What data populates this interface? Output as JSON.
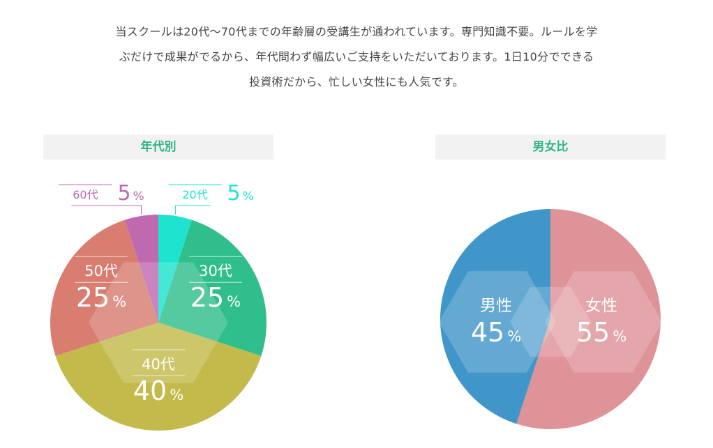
{
  "intro": {
    "lines": [
      "当スクールは20代〜70代までの年齢層の受講生が通われています。専門知識不要。ルールを学",
      "ぶだけで成果がでるから、年代問わず幅広いご支持をいただいております。1日10分でできる",
      "投資術だから、忙しい女性にも人気です。"
    ]
  },
  "chart_data": [
    {
      "type": "pie",
      "title": "年代別",
      "unit": "%",
      "slices": [
        {
          "label": "20代",
          "value": 5,
          "color": "#1de3cf"
        },
        {
          "label": "30代",
          "value": 25,
          "color": "#30bf8c"
        },
        {
          "label": "40代",
          "value": 40,
          "color": "#c3ba4b"
        },
        {
          "label": "50代",
          "value": 25,
          "color": "#d87d6f"
        },
        {
          "label": "60代",
          "value": 5,
          "color": "#bf69b1"
        }
      ]
    },
    {
      "type": "pie",
      "title": "男女比",
      "unit": "%",
      "slices": [
        {
          "label": "女性",
          "value": 55,
          "color": "#de9398"
        },
        {
          "label": "男性",
          "value": 45,
          "color": "#4196c9"
        }
      ]
    }
  ]
}
